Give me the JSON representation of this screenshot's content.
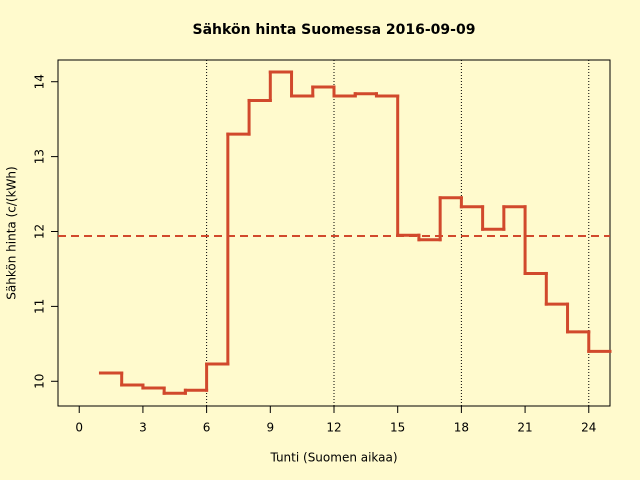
{
  "chart_data": {
    "type": "step",
    "title": "Sähkön hinta Suomessa 2016-09-09",
    "x_label": "Tunti (Suomen aikaa)",
    "y_label": "Sähkön hinta (c/(kWh)",
    "x": [
      1,
      2,
      3,
      4,
      5,
      6,
      7,
      8,
      9,
      10,
      11,
      12,
      13,
      14,
      15,
      16,
      17,
      18,
      19,
      20,
      21,
      22,
      23,
      24
    ],
    "series": [
      {
        "color": "#d1492c",
        "values": [
          10.11,
          9.95,
          9.91,
          9.84,
          9.88,
          10.23,
          13.3,
          13.75,
          14.13,
          13.81,
          13.93,
          13.81,
          13.84,
          13.81,
          11.95,
          11.89,
          12.45,
          12.33,
          12.03,
          12.33,
          11.44,
          11.03,
          10.66,
          10.4
        ]
      }
    ],
    "mean_line": {
      "value": 11.94,
      "color": "#d1492c"
    },
    "vlines": [
      6,
      12,
      18,
      24
    ],
    "xlim": [
      -1,
      25
    ],
    "ylim": [
      9.67,
      14.29
    ],
    "xticks": [
      0,
      3,
      6,
      9,
      12,
      15,
      18,
      21,
      24
    ],
    "yticks": [
      10,
      11,
      12,
      13,
      14
    ]
  }
}
